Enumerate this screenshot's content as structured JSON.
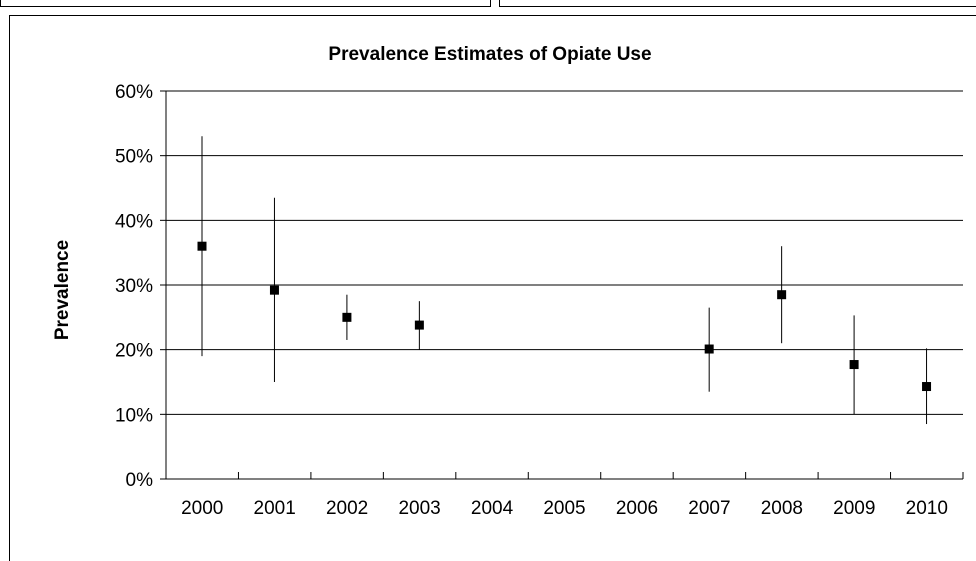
{
  "chart_data": {
    "type": "scatter",
    "title": "Prevalence Estimates of Opiate Use",
    "xlabel": "",
    "ylabel": "Prevalence",
    "categories": [
      "2000",
      "2001",
      "2002",
      "2003",
      "2004",
      "2005",
      "2006",
      "2007",
      "2008",
      "2009",
      "2010"
    ],
    "y_ticks": [
      "0%",
      "10%",
      "20%",
      "30%",
      "40%",
      "50%",
      "60%"
    ],
    "ylim": [
      0,
      60
    ],
    "y_unit": "%",
    "grid": true,
    "legend": "none",
    "marker": "square",
    "colors": {
      "marker": "#000000",
      "error_bar": "#000000",
      "grid": "#000000"
    },
    "points": [
      {
        "x": "2000",
        "y": 36,
        "low": 19,
        "high": 53
      },
      {
        "x": "2001",
        "y": 29.2,
        "low": 15,
        "high": 43.5
      },
      {
        "x": "2002",
        "y": 25,
        "low": 21.5,
        "high": 28.5
      },
      {
        "x": "2003",
        "y": 23.8,
        "low": 20,
        "high": 27.5
      },
      {
        "x": "2007",
        "y": 20.1,
        "low": 13.5,
        "high": 26.5
      },
      {
        "x": "2008",
        "y": 28.5,
        "low": 21,
        "high": 36
      },
      {
        "x": "2009",
        "y": 17.7,
        "low": 10,
        "high": 25.3
      },
      {
        "x": "2010",
        "y": 14.3,
        "low": 8.5,
        "high": 20.2
      }
    ]
  }
}
